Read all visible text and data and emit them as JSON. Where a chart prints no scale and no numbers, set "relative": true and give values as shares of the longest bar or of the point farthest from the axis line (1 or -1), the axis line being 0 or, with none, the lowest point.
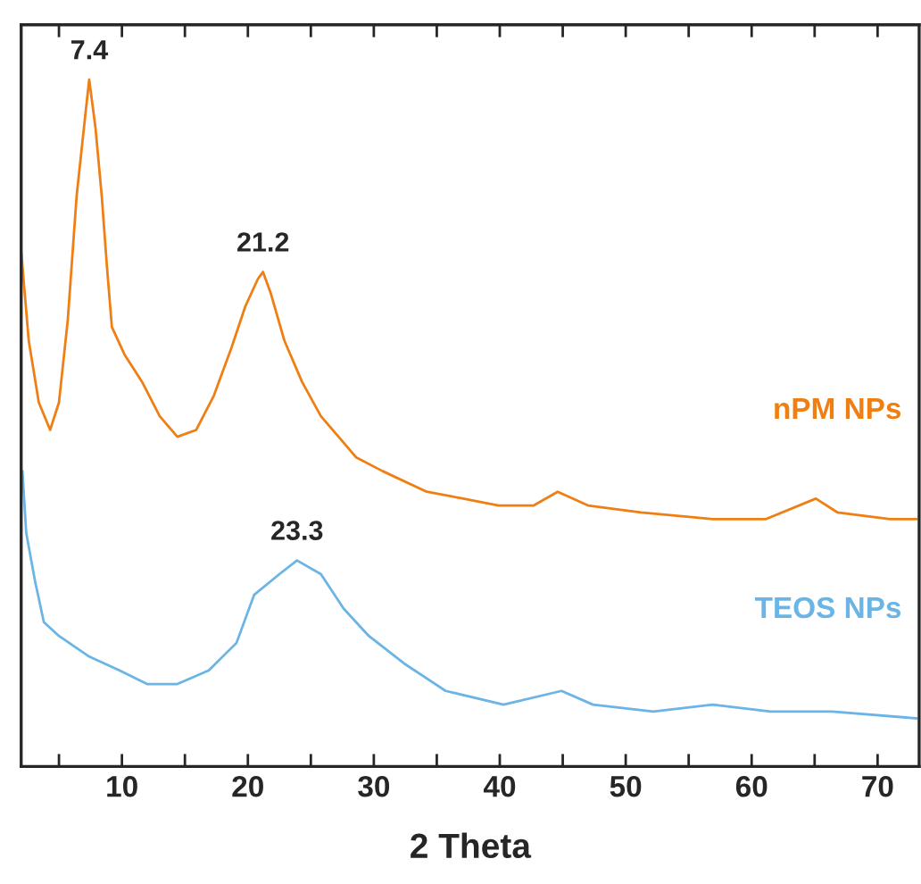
{
  "chart_data": {
    "type": "line",
    "relative": true,
    "xlabel": "2 Theta",
    "xlim": [
      2,
      73.3
    ],
    "xticks": [
      {
        "value": 5,
        "label": null
      },
      10,
      {
        "value": 15,
        "label": null
      },
      20,
      {
        "value": 25,
        "label": null
      },
      30,
      {
        "value": 35,
        "label": null
      },
      40,
      {
        "value": 45,
        "label": null
      },
      50,
      {
        "value": 55,
        "label": null
      },
      60,
      {
        "value": 65,
        "label": null
      },
      70
    ],
    "tick_labels": "x",
    "legend": false,
    "grid": false,
    "marker": "none",
    "line_style": "solid",
    "series": [
      {
        "name": "nPM NPs",
        "color": "#f07f13",
        "x": [
          2.0,
          2.6,
          3.4,
          4.3,
          5.0,
          5.7,
          6.4,
          7.1,
          7.4,
          7.9,
          8.4,
          8.8,
          9.2,
          10.2,
          11.6,
          13.0,
          14.4,
          15.9,
          17.3,
          18.7,
          19.8,
          20.8,
          21.2,
          21.8,
          22.9,
          24.3,
          25.8,
          27.2,
          28.6,
          30.7,
          34.2,
          37.1,
          39.9,
          42.7,
          44.6,
          47.0,
          51.2,
          56.9,
          61.1,
          65.1,
          66.8,
          71.0,
          73.1
        ],
        "values": [
          0.75,
          0.62,
          0.53,
          0.49,
          0.53,
          0.65,
          0.83,
          0.95,
          1.0,
          0.93,
          0.83,
          0.73,
          0.64,
          0.6,
          0.56,
          0.51,
          0.48,
          0.49,
          0.54,
          0.61,
          0.67,
          0.71,
          0.72,
          0.69,
          0.62,
          0.56,
          0.51,
          0.48,
          0.45,
          0.43,
          0.4,
          0.39,
          0.38,
          0.38,
          0.4,
          0.38,
          0.37,
          0.36,
          0.36,
          0.39,
          0.37,
          0.36,
          0.36
        ]
      },
      {
        "name": "TEOS NPs",
        "color": "#6ab4e6",
        "x": [
          2.1,
          2.4,
          3.1,
          3.8,
          5.0,
          7.4,
          9.8,
          12.0,
          14.4,
          16.9,
          19.1,
          20.5,
          22.5,
          23.9,
          25.8,
          27.6,
          29.6,
          32.4,
          35.7,
          40.3,
          44.9,
          47.4,
          52.2,
          56.9,
          61.5,
          66.4,
          73.1
        ],
        "values": [
          0.43,
          0.34,
          0.27,
          0.21,
          0.19,
          0.16,
          0.14,
          0.12,
          0.12,
          0.14,
          0.18,
          0.25,
          0.28,
          0.3,
          0.28,
          0.23,
          0.19,
          0.15,
          0.11,
          0.09,
          0.11,
          0.09,
          0.08,
          0.09,
          0.08,
          0.08,
          0.07
        ]
      }
    ],
    "annotations": [
      {
        "text": "7.4",
        "x": 7.4,
        "y": 1.0
      },
      {
        "text": "21.2",
        "x": 21.2,
        "y": 0.72
      },
      {
        "text": "23.3",
        "x": 23.9,
        "y": 0.3
      }
    ]
  }
}
